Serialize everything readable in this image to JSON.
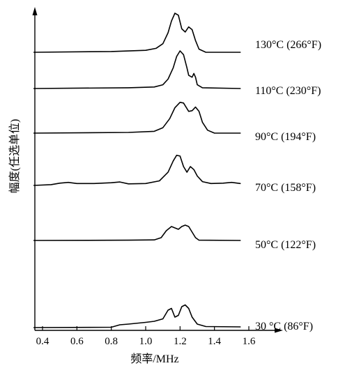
{
  "chart_data": {
    "type": "line",
    "xlabel": "频率/MHz",
    "ylabel": "幅度(任选单位)",
    "xlim": [
      0.35,
      1.65
    ],
    "x_ticks": [
      "0.4",
      "0.6",
      "0.8",
      "1.0",
      "1.2",
      "1.4",
      "1.6"
    ],
    "grid": false,
    "series": [
      {
        "name": "130°C (266°F)",
        "points": [
          [
            0.35,
            0.0
          ],
          [
            0.8,
            0.02
          ],
          [
            1.0,
            0.05
          ],
          [
            1.06,
            0.1
          ],
          [
            1.1,
            0.22
          ],
          [
            1.13,
            0.5
          ],
          [
            1.15,
            0.8
          ],
          [
            1.17,
            1.0
          ],
          [
            1.19,
            0.95
          ],
          [
            1.21,
            0.6
          ],
          [
            1.23,
            0.52
          ],
          [
            1.25,
            0.65
          ],
          [
            1.27,
            0.58
          ],
          [
            1.29,
            0.3
          ],
          [
            1.31,
            0.08
          ],
          [
            1.35,
            0.0
          ],
          [
            1.55,
            0.0
          ]
        ]
      },
      {
        "name": "110°C (230°F)",
        "points": [
          [
            0.35,
            0.0
          ],
          [
            0.9,
            0.02
          ],
          [
            1.05,
            0.04
          ],
          [
            1.1,
            0.1
          ],
          [
            1.13,
            0.25
          ],
          [
            1.16,
            0.55
          ],
          [
            1.18,
            0.85
          ],
          [
            1.2,
            1.0
          ],
          [
            1.22,
            0.9
          ],
          [
            1.24,
            0.55
          ],
          [
            1.25,
            0.35
          ],
          [
            1.27,
            0.3
          ],
          [
            1.28,
            0.4
          ],
          [
            1.29,
            0.3
          ],
          [
            1.3,
            0.1
          ],
          [
            1.33,
            0.02
          ],
          [
            1.55,
            0.0
          ]
        ]
      },
      {
        "name": "90°C (194°F)",
        "points": [
          [
            0.35,
            0.0
          ],
          [
            0.9,
            0.02
          ],
          [
            1.05,
            0.05
          ],
          [
            1.1,
            0.15
          ],
          [
            1.14,
            0.4
          ],
          [
            1.17,
            0.7
          ],
          [
            1.2,
            0.85
          ],
          [
            1.22,
            0.83
          ],
          [
            1.25,
            0.6
          ],
          [
            1.27,
            0.62
          ],
          [
            1.29,
            0.72
          ],
          [
            1.31,
            0.6
          ],
          [
            1.33,
            0.3
          ],
          [
            1.36,
            0.08
          ],
          [
            1.4,
            0.0
          ],
          [
            1.55,
            0.0
          ]
        ]
      },
      {
        "name": "70°C (158°F)",
        "points": [
          [
            0.35,
            0.0
          ],
          [
            0.45,
            0.02
          ],
          [
            0.5,
            0.06
          ],
          [
            0.55,
            0.08
          ],
          [
            0.6,
            0.05
          ],
          [
            0.7,
            0.05
          ],
          [
            0.8,
            0.07
          ],
          [
            0.85,
            0.09
          ],
          [
            0.9,
            0.04
          ],
          [
            1.0,
            0.05
          ],
          [
            1.08,
            0.12
          ],
          [
            1.13,
            0.35
          ],
          [
            1.16,
            0.65
          ],
          [
            1.18,
            0.8
          ],
          [
            1.2,
            0.78
          ],
          [
            1.22,
            0.5
          ],
          [
            1.24,
            0.35
          ],
          [
            1.26,
            0.5
          ],
          [
            1.28,
            0.42
          ],
          [
            1.3,
            0.25
          ],
          [
            1.33,
            0.1
          ],
          [
            1.38,
            0.05
          ],
          [
            1.45,
            0.06
          ],
          [
            1.5,
            0.08
          ],
          [
            1.55,
            0.05
          ]
        ]
      },
      {
        "name": "50°C (122°F)",
        "points": [
          [
            0.35,
            0.0
          ],
          [
            0.9,
            0.01
          ],
          [
            1.05,
            0.02
          ],
          [
            1.09,
            0.1
          ],
          [
            1.12,
            0.35
          ],
          [
            1.15,
            0.5
          ],
          [
            1.17,
            0.45
          ],
          [
            1.19,
            0.4
          ],
          [
            1.21,
            0.5
          ],
          [
            1.23,
            0.55
          ],
          [
            1.25,
            0.5
          ],
          [
            1.27,
            0.3
          ],
          [
            1.29,
            0.1
          ],
          [
            1.31,
            0.01
          ],
          [
            1.55,
            0.0
          ]
        ]
      },
      {
        "name": "30 °C (86°F)",
        "points": [
          [
            0.35,
            0.0
          ],
          [
            0.8,
            0.01
          ],
          [
            0.85,
            0.08
          ],
          [
            0.9,
            0.1
          ],
          [
            1.0,
            0.15
          ],
          [
            1.05,
            0.18
          ],
          [
            1.1,
            0.25
          ],
          [
            1.13,
            0.5
          ],
          [
            1.15,
            0.55
          ],
          [
            1.17,
            0.3
          ],
          [
            1.19,
            0.35
          ],
          [
            1.21,
            0.6
          ],
          [
            1.23,
            0.65
          ],
          [
            1.25,
            0.55
          ],
          [
            1.27,
            0.3
          ],
          [
            1.3,
            0.1
          ],
          [
            1.35,
            0.03
          ],
          [
            1.55,
            0.02
          ]
        ]
      }
    ]
  }
}
